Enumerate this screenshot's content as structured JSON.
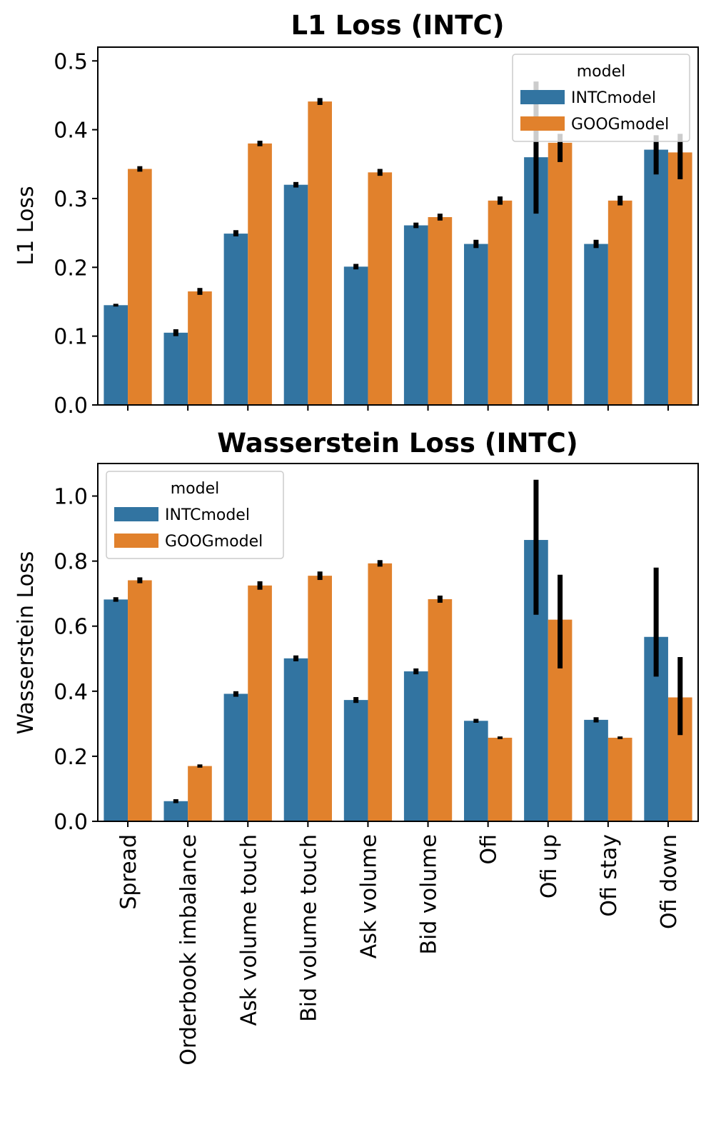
{
  "colors": {
    "INTCmodel": "#3274a1",
    "GOOGmodel": "#e1812c",
    "errorbar": "#000000"
  },
  "chart_data": [
    {
      "type": "bar",
      "title": "L1 Loss (INTC)",
      "xlabel": "",
      "ylabel": "L1 Loss",
      "ylim": [
        0,
        0.52
      ],
      "yticks": [
        0.0,
        0.1,
        0.2,
        0.3,
        0.4,
        0.5
      ],
      "ytick_labels": [
        "0.0",
        "0.1",
        "0.2",
        "0.3",
        "0.4",
        "0.5"
      ],
      "categories": [
        "Spread",
        "Orderbook imbalance",
        "Ask volume touch",
        "Bid volume touch",
        "Ask volume",
        "Bid volume",
        "Ofi",
        "Ofi up",
        "Ofi stay",
        "Ofi down"
      ],
      "legend": {
        "title": "model",
        "position": "top-right"
      },
      "series": [
        {
          "name": "INTCmodel",
          "values": [
            0.145,
            0.105,
            0.249,
            0.32,
            0.201,
            0.261,
            0.234,
            0.36,
            0.234,
            0.371
          ],
          "err_low": [
            0.143,
            0.1,
            0.245,
            0.316,
            0.197,
            0.257,
            0.228,
            0.278,
            0.228,
            0.335
          ],
          "err_high": [
            0.147,
            0.11,
            0.254,
            0.324,
            0.205,
            0.265,
            0.24,
            0.47,
            0.24,
            0.392
          ]
        },
        {
          "name": "GOOGmodel",
          "values": [
            0.343,
            0.165,
            0.38,
            0.441,
            0.338,
            0.273,
            0.297,
            0.381,
            0.297,
            0.367
          ],
          "err_low": [
            0.339,
            0.16,
            0.376,
            0.436,
            0.333,
            0.268,
            0.291,
            0.353,
            0.29,
            0.328
          ],
          "err_high": [
            0.347,
            0.17,
            0.384,
            0.446,
            0.343,
            0.278,
            0.303,
            0.394,
            0.304,
            0.394
          ]
        }
      ]
    },
    {
      "type": "bar",
      "title": "Wasserstein Loss (INTC)",
      "xlabel": "",
      "ylabel": "Wasserstein Loss",
      "ylim": [
        0,
        1.1
      ],
      "yticks": [
        0.0,
        0.2,
        0.4,
        0.6,
        0.8,
        1.0
      ],
      "ytick_labels": [
        "0.0",
        "0.2",
        "0.4",
        "0.6",
        "0.8",
        "1.0"
      ],
      "categories": [
        "Spread",
        "Orderbook imbalance",
        "Ask volume touch",
        "Bid volume touch",
        "Ask volume",
        "Bid volume",
        "Ofi",
        "Ofi up",
        "Ofi stay",
        "Ofi down"
      ],
      "legend": {
        "title": "model",
        "position": "top-left"
      },
      "series": [
        {
          "name": "INTCmodel",
          "values": [
            0.682,
            0.062,
            0.392,
            0.501,
            0.373,
            0.461,
            0.309,
            0.865,
            0.312,
            0.567
          ],
          "err_low": [
            0.675,
            0.056,
            0.383,
            0.492,
            0.364,
            0.452,
            0.303,
            0.635,
            0.304,
            0.445
          ],
          "err_high": [
            0.689,
            0.068,
            0.4,
            0.51,
            0.382,
            0.47,
            0.315,
            1.05,
            0.32,
            0.78
          ]
        },
        {
          "name": "GOOGmodel",
          "values": [
            0.741,
            0.17,
            0.725,
            0.755,
            0.793,
            0.683,
            0.257,
            0.62,
            0.257,
            0.381
          ],
          "err_low": [
            0.732,
            0.165,
            0.712,
            0.742,
            0.783,
            0.672,
            0.253,
            0.47,
            0.253,
            0.265
          ],
          "err_high": [
            0.75,
            0.175,
            0.738,
            0.768,
            0.803,
            0.694,
            0.261,
            0.758,
            0.261,
            0.505
          ]
        }
      ]
    }
  ]
}
